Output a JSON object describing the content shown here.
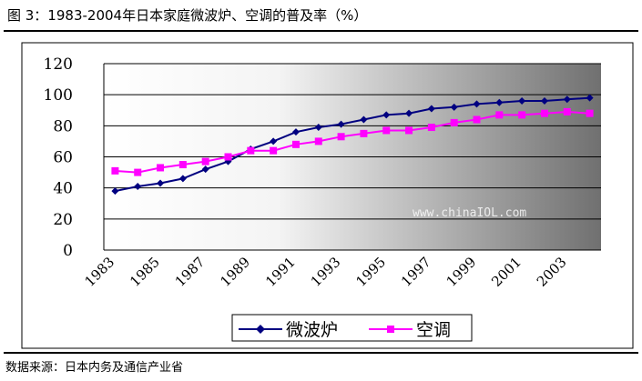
{
  "header": {
    "title": "图 3：1983-2004年日本家庭微波炉、空调的普及率（%）"
  },
  "footer": {
    "source": "数据来源：日本内务及通信产业省"
  },
  "watermark": "www.chinaIOL.com",
  "colors": {
    "series_microwave": "#000080",
    "series_ac": "#ff00ff"
  },
  "chart_data": {
    "type": "line",
    "title": "",
    "xlabel": "",
    "ylabel": "",
    "x": [
      1983,
      1984,
      1985,
      1986,
      1987,
      1988,
      1989,
      1990,
      1991,
      1992,
      1993,
      1994,
      1995,
      1996,
      1997,
      1998,
      1999,
      2000,
      2001,
      2002,
      2003,
      2004
    ],
    "x_tick_labels": [
      "1983",
      "1985",
      "1987",
      "1989",
      "1991",
      "1993",
      "1995",
      "1997",
      "1999",
      "2001",
      "2003"
    ],
    "ylim": [
      0,
      120
    ],
    "y_ticks": [
      0,
      20,
      40,
      60,
      80,
      100,
      120
    ],
    "grid": true,
    "legend_position": "bottom",
    "series": [
      {
        "name": "微波炉",
        "marker": "diamond",
        "values": [
          38,
          41,
          43,
          46,
          52,
          57,
          65,
          70,
          76,
          79,
          81,
          84,
          87,
          88,
          91,
          92,
          94,
          95,
          96,
          96,
          97,
          98
        ]
      },
      {
        "name": "空调",
        "marker": "square",
        "values": [
          51,
          50,
          53,
          55,
          57,
          60,
          64,
          64,
          68,
          70,
          73,
          75,
          77,
          77,
          79,
          82,
          84,
          87,
          87,
          88,
          89,
          88
        ]
      }
    ]
  }
}
